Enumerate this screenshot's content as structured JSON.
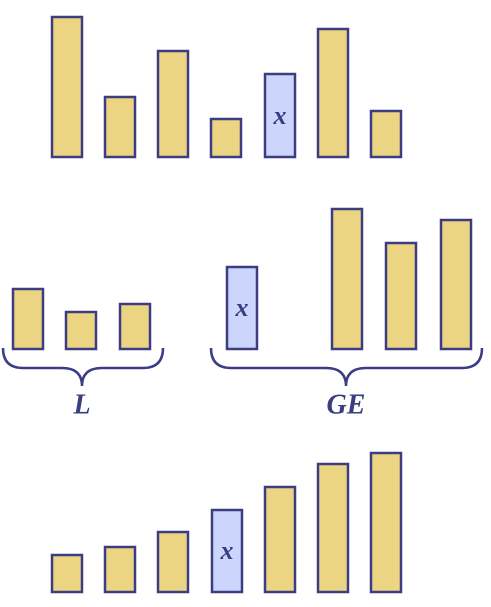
{
  "rows": [
    {
      "pivot": "x"
    },
    {
      "pivot": "x",
      "groups": [
        "L",
        "GE"
      ]
    },
    {
      "pivot": "x"
    }
  ]
}
